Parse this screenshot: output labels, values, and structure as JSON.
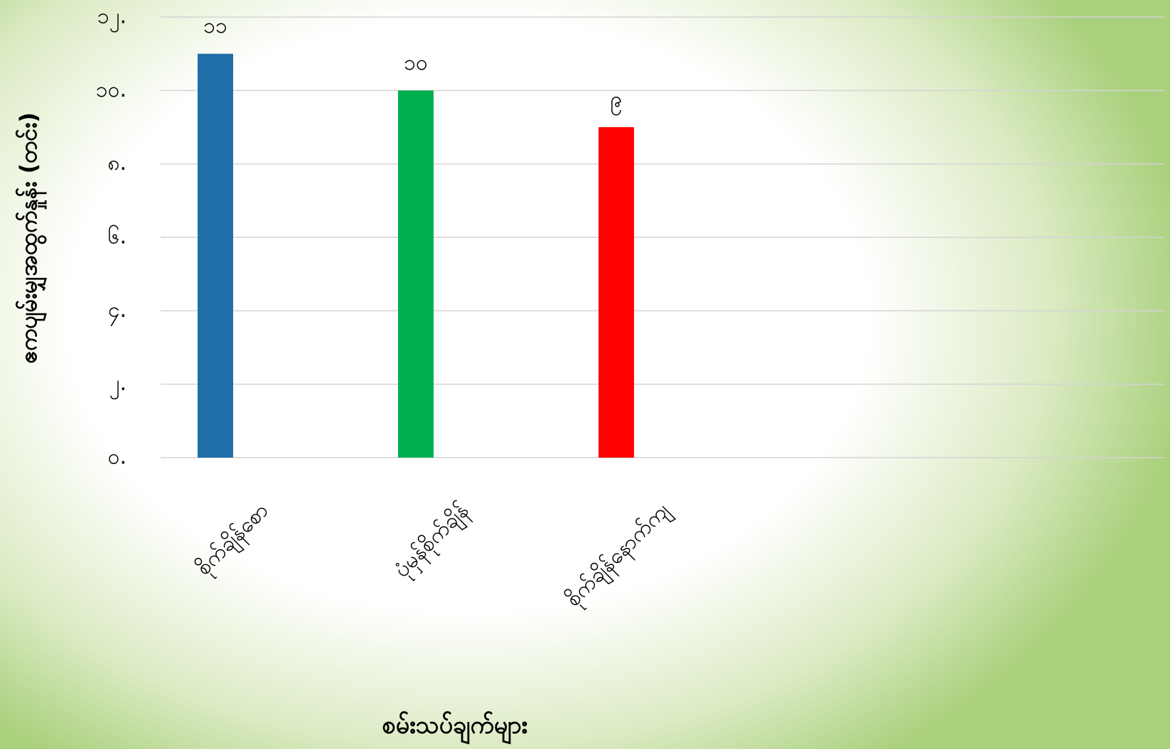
{
  "chart_data": {
    "type": "bar",
    "categories": [
      "စိုက်ချိန်စော",
      "ပုံမှန်စိုက်ချိန်",
      "စိုက်ချိန်နောက်ကျ"
    ],
    "values": [
      11,
      10,
      9
    ],
    "value_labels": [
      "၁၁",
      "၁၀",
      "၉"
    ],
    "colors": [
      "#1f6ea8",
      "#00b050",
      "#ff0000"
    ],
    "x_label": "စမ်းသပ်ချက်များ",
    "y_label": "ဧကပျမ်းမျှအထွက်နှုန်း (တင်း)",
    "ylim": [
      0,
      12
    ],
    "yticks": [
      {
        "value": 0,
        "label": "၀."
      },
      {
        "value": 2,
        "label": "၂."
      },
      {
        "value": 4,
        "label": "၄."
      },
      {
        "value": 6,
        "label": "၆."
      },
      {
        "value": 8,
        "label": "၈."
      },
      {
        "value": 10,
        "label": "၁၀."
      },
      {
        "value": 12,
        "label": "၁၂."
      }
    ],
    "grid": true
  }
}
